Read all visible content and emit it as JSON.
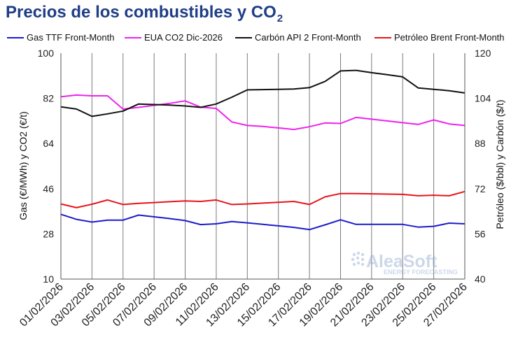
{
  "chart_data": {
    "type": "line",
    "title_main": "Precios de los combustibles y CO",
    "title_subscript": "2",
    "ylabel_left": "Gas (€/MWh) y CO2 (€/t)",
    "ylabel_right": "Petróleo ($/bbl) y Carbón ($/t)",
    "ylim_left": [
      10,
      100
    ],
    "ylim_right": [
      40,
      120
    ],
    "yticks_left": [
      10,
      28,
      46,
      64,
      82,
      100
    ],
    "yticks_right": [
      40,
      56,
      72,
      88,
      104,
      120
    ],
    "x": [
      "01/02/2026",
      "02/02/2026",
      "03/02/2026",
      "04/02/2026",
      "05/02/2026",
      "06/02/2026",
      "07/02/2026",
      "08/02/2026",
      "09/02/2026",
      "10/02/2026",
      "11/02/2026",
      "12/02/2026",
      "13/02/2026",
      "14/02/2026",
      "15/02/2026",
      "16/02/2026",
      "17/02/2026",
      "18/02/2026",
      "19/02/2026",
      "20/02/2026",
      "21/02/2026",
      "22/02/2026",
      "23/02/2026",
      "24/02/2026",
      "25/02/2026",
      "26/02/2026",
      "27/02/2026"
    ],
    "xtick_labels": [
      "01/02/2026",
      "03/02/2026",
      "05/02/2026",
      "07/02/2026",
      "09/02/2026",
      "11/02/2026",
      "13/02/2026",
      "15/02/2026",
      "17/02/2026",
      "19/02/2026",
      "21/02/2026",
      "23/02/2026",
      "25/02/2026",
      "27/02/2026"
    ],
    "grid": "vertical",
    "legend_position": "top",
    "series": [
      {
        "name": "Gas TTF Front-Month",
        "axis": "left",
        "color": "#1c1ccc",
        "values": [
          35.8,
          33.8,
          32.7,
          33.5,
          33.5,
          35.5,
          34.8,
          34.1,
          33.3,
          31.7,
          32.0,
          32.9,
          32.4,
          31.8,
          31.2,
          30.6,
          29.7,
          31.6,
          33.6,
          31.8,
          31.8,
          31.8,
          31.8,
          30.7,
          31.0,
          32.3,
          32.0
        ]
      },
      {
        "name": "EUA CO2 Dic-2026",
        "axis": "left",
        "color": "#ee22ee",
        "values": [
          82.6,
          83.3,
          83.0,
          83.0,
          77.7,
          78.4,
          79.2,
          80.0,
          81.0,
          78.5,
          78.0,
          72.6,
          71.2,
          70.8,
          70.2,
          69.6,
          70.7,
          72.2,
          72.0,
          74.4,
          73.7,
          73.0,
          72.3,
          71.6,
          73.4,
          71.8,
          71.2
        ]
      },
      {
        "name": "Carbón API 2 Front-Month",
        "axis": "right",
        "color": "#111111",
        "values": [
          101.0,
          100.2,
          97.6,
          98.5,
          99.5,
          102.0,
          101.8,
          101.6,
          101.3,
          100.8,
          102.0,
          104.4,
          107.0,
          107.1,
          107.2,
          107.3,
          107.8,
          110.0,
          113.7,
          113.9,
          113.1,
          112.4,
          111.6,
          107.7,
          107.2,
          106.7,
          105.9
        ]
      },
      {
        "name": "Petróleo Brent Front-Month",
        "axis": "right",
        "color": "#e8141c",
        "values": [
          66.6,
          65.3,
          66.5,
          68.0,
          66.4,
          66.8,
          67.1,
          67.4,
          67.7,
          67.5,
          68.0,
          66.4,
          66.6,
          66.9,
          67.2,
          67.5,
          66.4,
          69.1,
          70.3,
          70.3,
          70.2,
          70.1,
          70.0,
          69.5,
          69.7,
          69.5,
          71.0
        ]
      }
    ]
  },
  "watermark": {
    "brand": "AleaSoft",
    "tagline": "ENERGY FORECASTING"
  }
}
